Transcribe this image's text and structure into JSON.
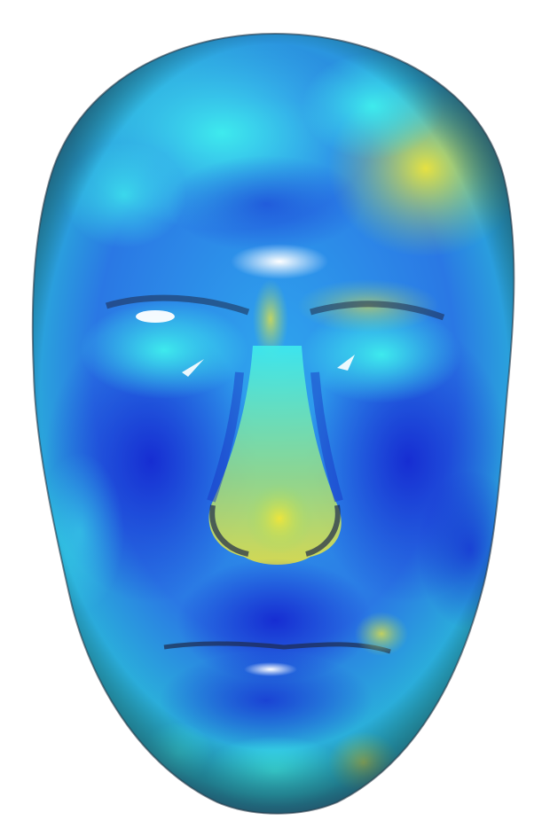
{
  "scene": {
    "subject_icon": "face-mesh-icon",
    "colormap": {
      "low": "#1a2bd8",
      "mid_low": "#1f7fe8",
      "mid": "#2fe0e6",
      "mid_high": "#7fd7a0",
      "high": "#e8e23a",
      "highlight": "#ffffff",
      "shadow": "#1e2a4a"
    },
    "background": "#ffffff"
  }
}
